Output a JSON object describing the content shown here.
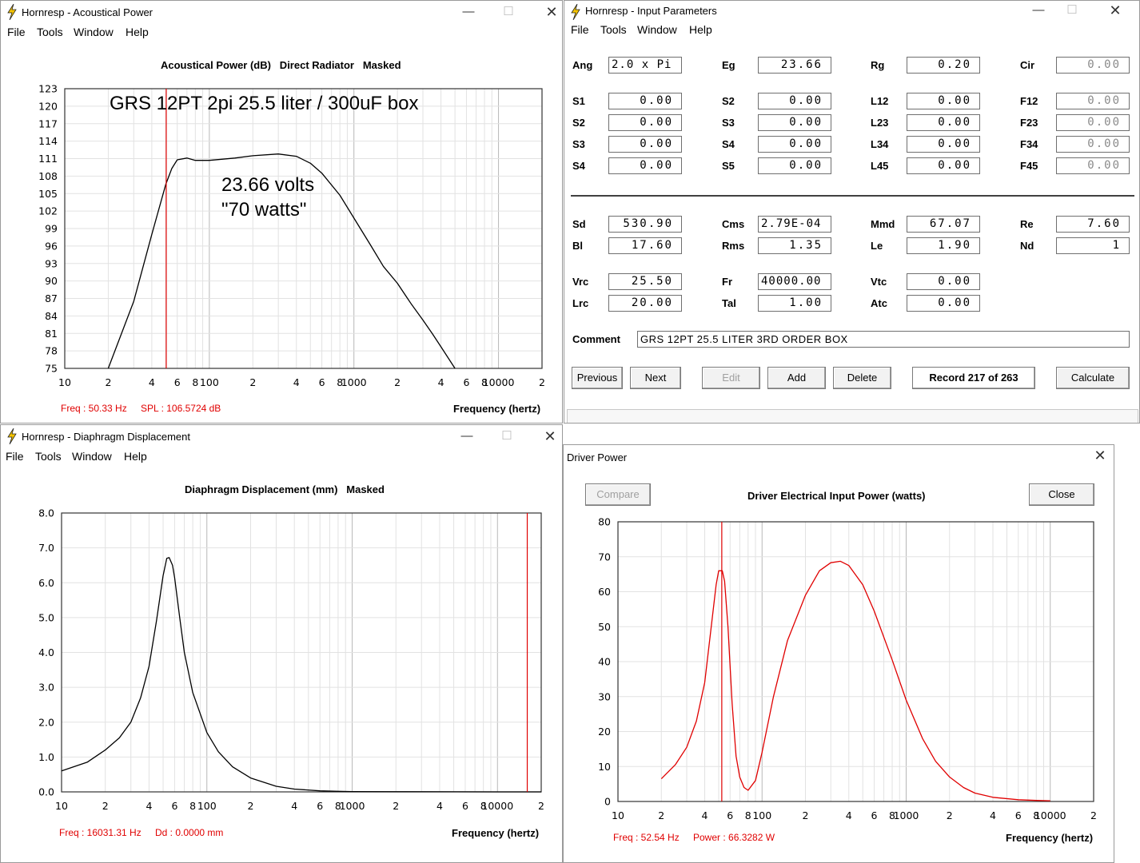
{
  "acoustic": {
    "title": "Hornresp - Acoustical Power",
    "menu": [
      "File",
      "Tools",
      "Window",
      "Help"
    ],
    "chart_title": "Acoustical Power (dB)   Direct Radiator   Masked",
    "annotation_title": "GRS  12PT  2pi 25.5 liter / 300uF box",
    "annotation_volts": "23.66 volts",
    "annotation_watts": "\"70 watts\"",
    "status_freq": "Freq : 50.33 Hz",
    "status_value": "SPL : 106.5724 dB",
    "freq_label": "Frequency (hertz)"
  },
  "params": {
    "title": "Hornresp - Input Parameters",
    "menu": [
      "File",
      "Tools",
      "Window",
      "Help"
    ],
    "labels": {
      "Ang": "Ang",
      "Eg": "Eg",
      "Rg": "Rg",
      "Cir": "Cir",
      "S1a": "S1",
      "S2a": "S2",
      "S3a": "S3",
      "S4a": "S4",
      "S2b": "S2",
      "S3b": "S3",
      "S4b": "S4",
      "S5b": "S5",
      "L12": "L12",
      "L23": "L23",
      "L34": "L34",
      "L45": "L45",
      "F12": "F12",
      "F23": "F23",
      "F34": "F34",
      "F45": "F45",
      "Sd": "Sd",
      "Bl": "Bl",
      "Cms": "Cms",
      "Rms": "Rms",
      "Mmd": "Mmd",
      "Le": "Le",
      "Re": "Re",
      "Nd": "Nd",
      "Vrc": "Vrc",
      "Lrc": "Lrc",
      "Fr": "Fr",
      "Tal": "Tal",
      "Vtc": "Vtc",
      "Atc": "Atc",
      "Comment": "Comment"
    },
    "values": {
      "Ang": "2.0 x Pi",
      "Eg": "23.66",
      "Rg": "0.20",
      "Cir": "0.00",
      "S1a": "0.00",
      "S2a": "0.00",
      "S3a": "0.00",
      "S4a": "0.00",
      "S2b": "0.00",
      "S3b": "0.00",
      "S4b": "0.00",
      "S5b": "0.00",
      "L12": "0.00",
      "L23": "0.00",
      "L34": "0.00",
      "L45": "0.00",
      "F12": "0.00",
      "F23": "0.00",
      "F34": "0.00",
      "F45": "0.00",
      "Sd": "530.90",
      "Bl": "17.60",
      "Cms": "2.79E-04",
      "Rms": "1.35",
      "Mmd": "67.07",
      "Le": "1.90",
      "Re": "7.60",
      "Nd": "1",
      "Vrc": "25.50",
      "Lrc": "20.00",
      "Fr": "40000.00",
      "Tal": "1.00",
      "Vtc": "0.00",
      "Atc": "0.00",
      "Comment": "GRS 12PT 25.5 LITER 3RD ORDER BOX"
    },
    "buttons": {
      "previous": "Previous",
      "next": "Next",
      "edit": "Edit",
      "add": "Add",
      "delete": "Delete",
      "record": "Record 217 of 263",
      "calculate": "Calculate"
    }
  },
  "displacement": {
    "title": "Hornresp - Diaphragm Displacement",
    "menu": [
      "File",
      "Tools",
      "Window",
      "Help"
    ],
    "chart_title": "Diaphragm Displacement (mm)   Masked",
    "status_freq": "Freq : 16031.31 Hz",
    "status_value": "Dd : 0.0000 mm",
    "freq_label": "Frequency (hertz)"
  },
  "power": {
    "title": "Driver Power",
    "compare_label": "Compare",
    "close_label": "Close",
    "chart_title": "Driver Electrical Input Power (watts)",
    "status_freq": "Freq : 52.54 Hz",
    "status_value": "Power : 66.3282 W",
    "freq_label": "Frequency (hertz)"
  },
  "x_ticks": [
    "10",
    "2",
    "4",
    "6",
    "8",
    "100",
    "2",
    "4",
    "6",
    "8",
    "1000",
    "2",
    "4",
    "6",
    "8",
    "10000",
    "2"
  ],
  "chart_data": [
    {
      "type": "line",
      "title": "Acoustical Power (dB)   Direct Radiator   Masked",
      "xlabel": "Frequency (hertz)",
      "ylabel": "",
      "x_scale": "log",
      "xlim": [
        10,
        20000
      ],
      "ylim": [
        75,
        123
      ],
      "y_ticks": [
        "123",
        "120",
        "117",
        "114",
        "111",
        "108",
        "105",
        "102",
        "99",
        "96",
        "93",
        "90",
        "87",
        "84",
        "81",
        "78",
        "75"
      ],
      "grid": true,
      "cursor_x": 50.33,
      "cursor_color": "#e00000",
      "line_color": "#000000",
      "x": [
        20,
        30,
        40,
        50,
        55,
        60,
        70,
        80,
        100,
        150,
        200,
        300,
        400,
        500,
        600,
        800,
        1000,
        1300,
        1600,
        2000,
        2500,
        3000,
        3500,
        4000,
        5000
      ],
      "y": [
        75,
        86.5,
        98,
        106.6,
        109.3,
        110.8,
        111.1,
        110.7,
        110.7,
        111.1,
        111.5,
        111.8,
        111.4,
        110.2,
        108.5,
        104.7,
        100.8,
        96.2,
        92.5,
        89.6,
        86.0,
        83.3,
        80.9,
        78.7,
        75
      ]
    },
    {
      "type": "line",
      "title": "Diaphragm Displacement (mm)   Masked",
      "xlabel": "Frequency (hertz)",
      "ylabel": "",
      "x_scale": "log",
      "xlim": [
        10,
        20000
      ],
      "ylim": [
        0,
        8
      ],
      "y_ticks": [
        "8.0",
        "7.0",
        "6.0",
        "5.0",
        "4.0",
        "3.0",
        "2.0",
        "1.0",
        "0.0"
      ],
      "grid": true,
      "cursor_x": 16031.31,
      "cursor_color": "#e00000",
      "line_color": "#000000",
      "x": [
        10,
        15,
        20,
        25,
        30,
        35,
        40,
        45,
        50,
        53,
        55,
        58,
        60,
        65,
        70,
        80,
        100,
        120,
        150,
        200,
        300,
        400,
        600,
        800,
        1000,
        2000,
        5000,
        10000,
        20000
      ],
      "y": [
        0.6,
        0.85,
        1.2,
        1.55,
        2.0,
        2.7,
        3.6,
        4.9,
        6.2,
        6.7,
        6.72,
        6.5,
        6.15,
        5.0,
        4.0,
        2.85,
        1.7,
        1.15,
        0.72,
        0.4,
        0.16,
        0.08,
        0.03,
        0.015,
        0.01,
        0.005,
        0.002,
        0.001,
        0.0
      ]
    },
    {
      "type": "line",
      "title": "Driver Electrical Input Power (watts)",
      "xlabel": "Frequency (hertz)",
      "ylabel": "",
      "x_scale": "log",
      "xlim": [
        10,
        20000
      ],
      "ylim": [
        0,
        80
      ],
      "y_ticks": [
        "80",
        "70",
        "60",
        "50",
        "40",
        "30",
        "20",
        "10",
        "0"
      ],
      "grid": true,
      "cursor_x": 52.54,
      "cursor_color": "#e00000",
      "line_color": "#e00000",
      "x": [
        20,
        25,
        30,
        35,
        40,
        45,
        48,
        50,
        53,
        55,
        58,
        62,
        66,
        70,
        75,
        80,
        90,
        100,
        120,
        150,
        200,
        250,
        300,
        350,
        400,
        500,
        600,
        800,
        1000,
        1300,
        1600,
        2000,
        2500,
        3000,
        4000,
        6000,
        8000,
        10000
      ],
      "y": [
        6.5,
        10.5,
        15.5,
        23,
        34,
        52,
        62,
        66,
        66,
        63,
        50,
        28,
        13,
        7,
        4,
        3.2,
        6,
        14,
        30,
        46,
        59,
        66,
        68.3,
        68.7,
        67.5,
        62,
        54.5,
        40.5,
        29,
        18,
        11.5,
        7,
        4,
        2.4,
        1.2,
        0.5,
        0.3,
        0.2
      ]
    }
  ]
}
